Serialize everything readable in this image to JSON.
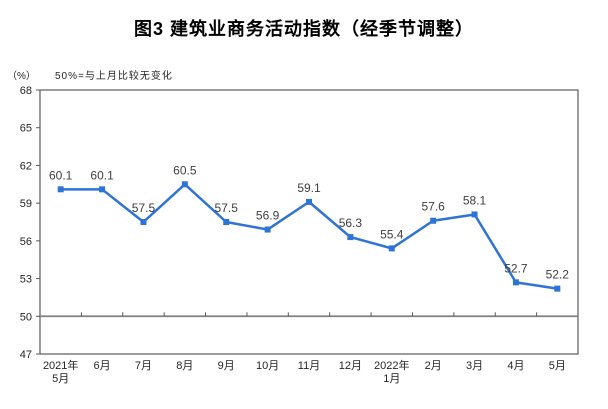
{
  "chart_data": {
    "type": "line",
    "title": "图3 建筑业商务活动指数（经季节调整）",
    "unit_label": "（%）",
    "note": "50%=与上月比较无变化",
    "categories": [
      [
        "2021年",
        "5月"
      ],
      "6月",
      "7月",
      "8月",
      "9月",
      "10月",
      "11月",
      "12月",
      [
        "2022年",
        "1月"
      ],
      "2月",
      "3月",
      "4月",
      "5月"
    ],
    "values": [
      60.1,
      60.1,
      57.5,
      60.5,
      57.5,
      56.9,
      59.1,
      56.3,
      55.4,
      57.6,
      58.1,
      52.7,
      52.2
    ],
    "ylim": [
      47,
      68
    ],
    "yticks": [
      47,
      50,
      53,
      56,
      59,
      62,
      65,
      68
    ],
    "reference_value": 50,
    "grid": false,
    "legend": "none",
    "data_labels": true,
    "colors": {
      "line": "#2E73D6",
      "reference_line": "#808080",
      "plot_border": "#595959",
      "axis_text": "#262626",
      "data_label_text": "#404040"
    }
  }
}
